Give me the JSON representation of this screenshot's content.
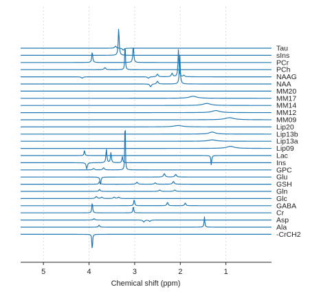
{
  "chart_data": {
    "type": "line",
    "title": "",
    "xlabel": "Chemical shift (ppm)",
    "ylabel": "",
    "xlim": [
      5.5,
      0.0
    ],
    "x_reversed": true,
    "x_ticks": [
      5,
      4,
      3,
      2,
      1
    ],
    "x_tick_labels": [
      "5",
      "4",
      "3",
      "2",
      "1"
    ],
    "grid": "vertical dashed at major ticks",
    "line_color": "#1f77b4",
    "series": [
      {
        "name": "Tau",
        "peaks": [
          {
            "ppm": 3.42,
            "amp": 3,
            "w": 0.02
          },
          {
            "ppm": 3.25,
            "amp": -3,
            "w": 0.02
          }
        ]
      },
      {
        "name": "sIns",
        "peaks": [
          {
            "ppm": 3.35,
            "amp": 40,
            "w": 0.012
          }
        ]
      },
      {
        "name": "PCr",
        "peaks": [
          {
            "ppm": 3.93,
            "amp": 16,
            "w": 0.012
          },
          {
            "ppm": 3.03,
            "amp": 25,
            "w": 0.012
          }
        ]
      },
      {
        "name": "PCh",
        "peaks": [
          {
            "ppm": 3.65,
            "amp": 3,
            "w": 0.02
          },
          {
            "ppm": 3.21,
            "amp": 42,
            "w": 0.008
          }
        ]
      },
      {
        "name": "NAAG",
        "peaks": [
          {
            "ppm": 4.15,
            "amp": -2,
            "w": 0.02
          },
          {
            "ppm": 2.7,
            "amp": -2,
            "w": 0.02
          },
          {
            "ppm": 2.5,
            "amp": 4,
            "w": 0.02
          },
          {
            "ppm": 2.18,
            "amp": 5,
            "w": 0.02
          },
          {
            "ppm": 2.04,
            "amp": 40,
            "w": 0.012
          },
          {
            "ppm": 1.92,
            "amp": 2,
            "w": 0.02
          }
        ]
      },
      {
        "name": "NAA",
        "peaks": [
          {
            "ppm": 2.65,
            "amp": -4,
            "w": 0.02
          },
          {
            "ppm": 2.5,
            "amp": 4,
            "w": 0.02
          },
          {
            "ppm": 2.01,
            "amp": 42,
            "w": 0.012
          }
        ]
      },
      {
        "name": "MM20",
        "peaks": []
      },
      {
        "name": "MM17",
        "peaks": [
          {
            "ppm": 1.72,
            "amp": 3,
            "w": 0.1
          }
        ]
      },
      {
        "name": "MM14",
        "peaks": [
          {
            "ppm": 1.42,
            "amp": 3,
            "w": 0.1
          }
        ]
      },
      {
        "name": "MM12",
        "peaks": [
          {
            "ppm": 1.22,
            "amp": 3,
            "w": 0.1
          }
        ]
      },
      {
        "name": "MM09",
        "peaks": [
          {
            "ppm": 0.92,
            "amp": 3,
            "w": 0.12
          }
        ]
      },
      {
        "name": "Lip20",
        "peaks": [
          {
            "ppm": 2.05,
            "amp": 2,
            "w": 0.12
          }
        ]
      },
      {
        "name": "Lip13b",
        "peaks": [
          {
            "ppm": 1.3,
            "amp": 3,
            "w": 0.08
          }
        ]
      },
      {
        "name": "Lip13a",
        "peaks": [
          {
            "ppm": 1.3,
            "amp": 2,
            "w": 0.1
          }
        ]
      },
      {
        "name": "Lip09",
        "peaks": [
          {
            "ppm": 0.9,
            "amp": 3,
            "w": 0.1
          }
        ]
      },
      {
        "name": "Lac",
        "peaks": [
          {
            "ppm": 4.1,
            "amp": 8,
            "w": 0.01
          },
          {
            "ppm": 1.32,
            "amp": -14,
            "w": 0.01
          }
        ]
      },
      {
        "name": "Ins",
        "peaks": [
          {
            "ppm": 4.05,
            "amp": -9,
            "w": 0.015
          },
          {
            "ppm": 3.62,
            "amp": 20,
            "w": 0.012
          },
          {
            "ppm": 3.52,
            "amp": 15,
            "w": 0.012
          },
          {
            "ppm": 3.27,
            "amp": 9,
            "w": 0.012
          }
        ]
      },
      {
        "name": "GPC",
        "peaks": [
          {
            "ppm": 3.9,
            "amp": 2,
            "w": 0.02
          },
          {
            "ppm": 3.68,
            "amp": 3,
            "w": 0.02
          },
          {
            "ppm": 3.21,
            "amp": 100,
            "w": 0.006
          }
        ]
      },
      {
        "name": "Glu",
        "peaks": [
          {
            "ppm": 3.75,
            "amp": -12,
            "w": 0.012
          },
          {
            "ppm": 2.35,
            "amp": 5,
            "w": 0.02
          },
          {
            "ppm": 2.1,
            "amp": 4,
            "w": 0.02
          }
        ]
      },
      {
        "name": "GSH",
        "peaks": [
          {
            "ppm": 3.77,
            "amp": 4,
            "w": 0.015
          },
          {
            "ppm": 2.95,
            "amp": 3,
            "w": 0.02
          },
          {
            "ppm": 2.55,
            "amp": 2,
            "w": 0.02
          },
          {
            "ppm": 2.15,
            "amp": 4,
            "w": 0.02
          }
        ]
      },
      {
        "name": "Gln",
        "peaks": [
          {
            "ppm": 3.77,
            "amp": 3,
            "w": 0.015
          },
          {
            "ppm": 2.45,
            "amp": 2,
            "w": 0.02
          },
          {
            "ppm": 2.12,
            "amp": 2,
            "w": 0.02
          }
        ]
      },
      {
        "name": "Glc",
        "peaks": [
          {
            "ppm": 3.84,
            "amp": 3,
            "w": 0.02
          },
          {
            "ppm": 3.72,
            "amp": 2,
            "w": 0.02
          },
          {
            "ppm": 3.45,
            "amp": 2,
            "w": 0.02
          },
          {
            "ppm": 3.35,
            "amp": 2,
            "w": 0.02
          }
        ]
      },
      {
        "name": "GABA",
        "peaks": [
          {
            "ppm": 3.01,
            "amp": 9,
            "w": 0.012
          },
          {
            "ppm": 2.28,
            "amp": 5,
            "w": 0.015
          },
          {
            "ppm": 1.89,
            "amp": 4,
            "w": 0.015
          }
        ]
      },
      {
        "name": "Cr",
        "peaks": [
          {
            "ppm": 3.93,
            "amp": 16,
            "w": 0.01
          },
          {
            "ppm": 3.03,
            "amp": 10,
            "w": 0.01
          }
        ]
      },
      {
        "name": "Asp",
        "peaks": [
          {
            "ppm": 3.89,
            "amp": 2,
            "w": 0.015
          },
          {
            "ppm": 2.8,
            "amp": -3,
            "w": 0.02
          },
          {
            "ppm": 2.67,
            "amp": -2,
            "w": 0.02
          }
        ]
      },
      {
        "name": "Ala",
        "peaks": [
          {
            "ppm": 3.78,
            "amp": 3,
            "w": 0.015
          },
          {
            "ppm": 1.47,
            "amp": 15,
            "w": 0.01
          }
        ]
      },
      {
        "name": "-CrCH2",
        "peaks": [
          {
            "ppm": 3.93,
            "amp": -26,
            "w": 0.008
          }
        ]
      }
    ]
  }
}
